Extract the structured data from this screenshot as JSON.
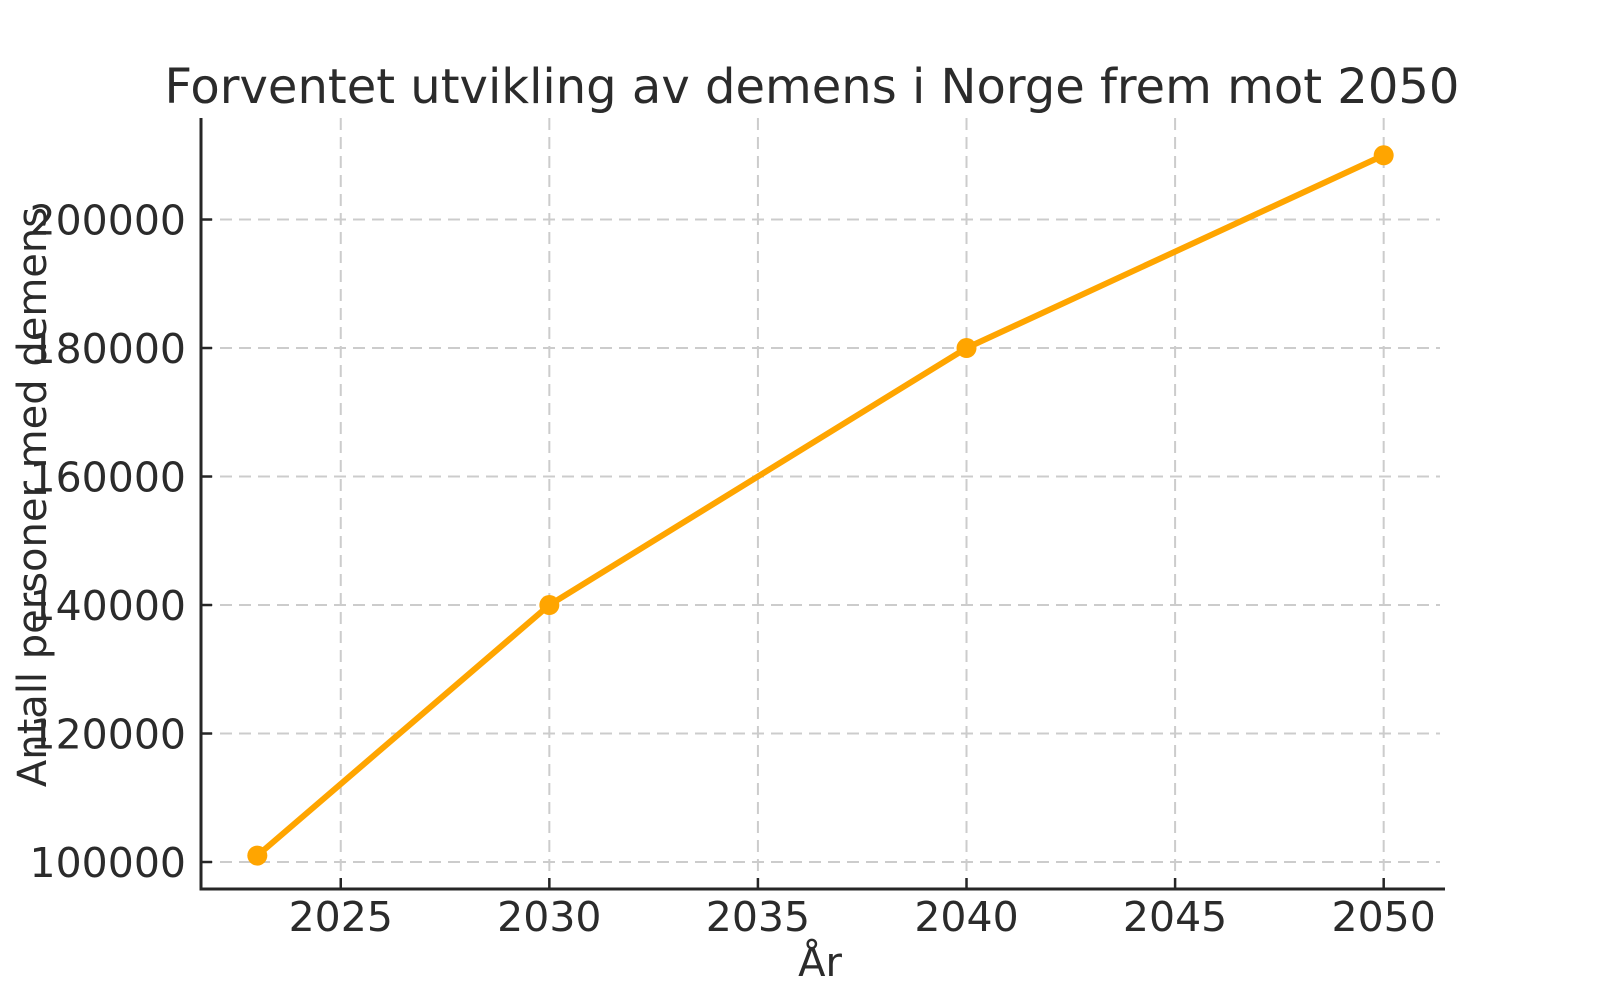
{
  "chart_data": {
    "type": "line",
    "title": "Forventet utvikling av demens i Norge frem mot 2050",
    "xlabel": "År",
    "ylabel": "Antall personer med demens",
    "x": [
      2023,
      2030,
      2040,
      2050
    ],
    "values": [
      101000,
      140000,
      180000,
      210000
    ],
    "xlim": [
      2021.65,
      2051.35
    ],
    "ylim": [
      95800,
      215800
    ],
    "xticks": [
      2025,
      2030,
      2035,
      2040,
      2045,
      2050
    ],
    "yticks": [
      100000,
      120000,
      140000,
      160000,
      180000,
      200000
    ],
    "grid": true,
    "grid_style": "dashed",
    "legend_position": "none",
    "line_color": "#FFA500",
    "marker": "circle",
    "marker_color": "#FFA500",
    "grid_color": "#cccccc",
    "spine_color": "#262626",
    "tick_color": "#262626",
    "text_color": "#2b2b2b",
    "background_color": "#ffffff"
  }
}
